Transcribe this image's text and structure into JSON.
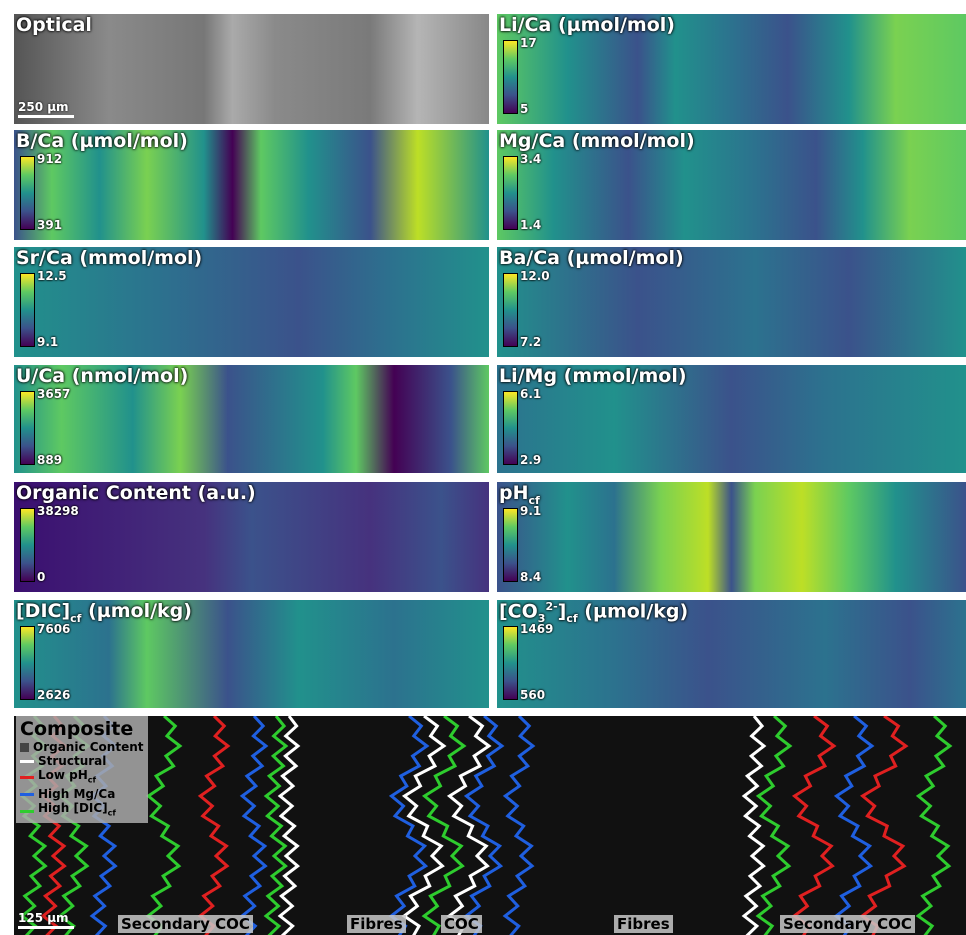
{
  "panels": [
    {
      "title": [
        {
          "text": "Optical"
        }
      ],
      "scale_bar": "250 µm"
    },
    {
      "title": [
        {
          "text": "Li/Ca (µmol/mol)"
        }
      ],
      "colorbar": {
        "max": "17",
        "min": "5"
      }
    },
    {
      "title": [
        {
          "text": "B/Ca (µmol/mol)"
        }
      ],
      "colorbar": {
        "max": "912",
        "min": "391"
      }
    },
    {
      "title": [
        {
          "text": "Mg/Ca (mmol/mol)"
        }
      ],
      "colorbar": {
        "max": "3.4",
        "min": "1.4"
      }
    },
    {
      "title": [
        {
          "text": "Sr/Ca (mmol/mol)"
        }
      ],
      "colorbar": {
        "max": "12.5",
        "min": "9.1"
      }
    },
    {
      "title": [
        {
          "text": "Ba/Ca (µmol/mol)"
        }
      ],
      "colorbar": {
        "max": "12.0",
        "min": "7.2"
      }
    },
    {
      "title": [
        {
          "text": "U/Ca (nmol/mol)"
        }
      ],
      "colorbar": {
        "max": "3657",
        "min": "889"
      }
    },
    {
      "title": [
        {
          "text": "Li/Mg (mmol/mol)"
        }
      ],
      "colorbar": {
        "max": "6.1",
        "min": "2.9"
      }
    },
    {
      "title": [
        {
          "text": "Organic Content (a.u.)"
        }
      ],
      "colorbar": {
        "max": "38298",
        "min": "0"
      }
    },
    {
      "title": [
        {
          "text": "pH"
        },
        {
          "sub": "cf"
        }
      ],
      "colorbar": {
        "max": "9.1",
        "min": "8.4"
      }
    },
    {
      "title": [
        {
          "text": "[DIC]"
        },
        {
          "sub": "cf"
        },
        {
          "text": " (µmol/kg)"
        }
      ],
      "colorbar": {
        "max": "7606",
        "min": "2626"
      }
    },
    {
      "title": [
        {
          "text": "[CO"
        },
        {
          "sub": "3"
        },
        {
          "sup": "2-"
        },
        {
          "text": "]"
        },
        {
          "sub": "cf"
        },
        {
          "text": " (µmol/kg)"
        }
      ],
      "colorbar": {
        "max": "1469",
        "min": "560"
      }
    }
  ],
  "composite": {
    "title": "Composite",
    "legend": [
      [
        {
          "text": "Organic Content"
        }
      ],
      [
        {
          "text": "Structural"
        }
      ],
      [
        {
          "text": "Low pH"
        },
        {
          "sub": "cf"
        }
      ],
      [
        {
          "text": "High Mg/Ca"
        }
      ],
      [
        {
          "text": "High [DIC]"
        },
        {
          "sub": "cf"
        }
      ]
    ],
    "scale_bar": "125 µm",
    "regions": [
      "Secondary COC",
      "Fibres",
      "COC",
      "Fibres",
      "Secondary COC"
    ]
  }
}
